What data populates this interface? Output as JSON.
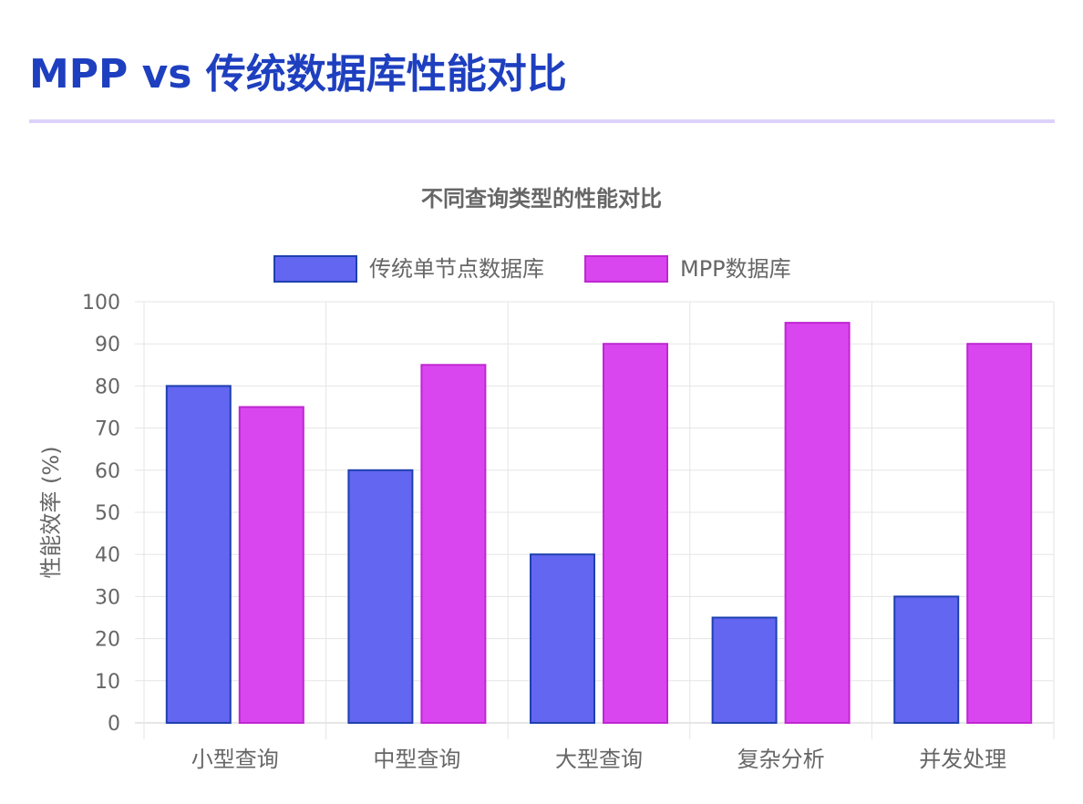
{
  "page": {
    "title": "MPP vs 传统数据库性能对比"
  },
  "colors": {
    "title": "#1e3fbf",
    "divider": "#ddd1fb",
    "series_fill": [
      "#6366f1",
      "#d946ef"
    ],
    "series_stroke": [
      "#1e40af",
      "#c026d3"
    ],
    "grid": "#e5e5e5",
    "axis_text": "#666666"
  },
  "chart_data": {
    "type": "bar",
    "title": "不同查询类型的性能对比",
    "xlabel": "",
    "ylabel": "性能效率 (%)",
    "categories": [
      "小型查询",
      "中型查询",
      "大型查询",
      "复杂分析",
      "并发处理"
    ],
    "series": [
      {
        "name": "传统单节点数据库",
        "values": [
          80,
          60,
          40,
          25,
          30
        ]
      },
      {
        "name": "MPP数据库",
        "values": [
          75,
          85,
          90,
          95,
          90
        ]
      }
    ],
    "ylim": [
      0,
      100
    ],
    "yticks": [
      0,
      10,
      20,
      30,
      40,
      50,
      60,
      70,
      80,
      90,
      100
    ],
    "grid": true,
    "legend": "top-center"
  }
}
